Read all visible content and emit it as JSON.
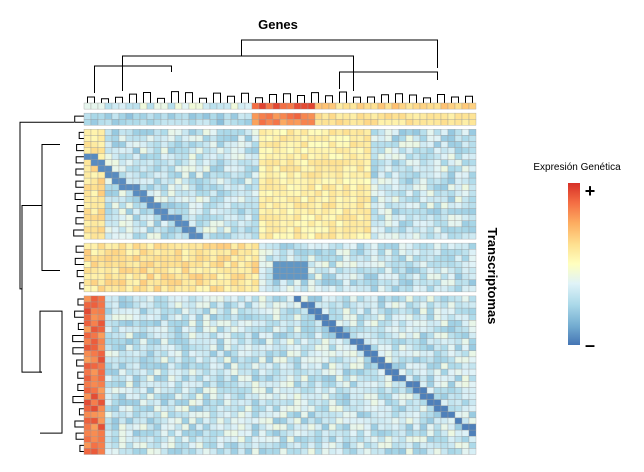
{
  "chart_data": {
    "type": "heatmap",
    "title": "",
    "xlabel": "Genes",
    "ylabel": "Transcriptomas",
    "n_columns": 56,
    "n_rows": 54,
    "row_groups": [
      2,
      18,
      8,
      26
    ],
    "legend": {
      "title": "Expresión Genética",
      "high_label": "+",
      "low_label": "–",
      "placement": "right",
      "colors": [
        "#d73027",
        "#f46d43",
        "#fdae61",
        "#fee090",
        "#ffffbf",
        "#e0f3f8",
        "#abd9e9",
        "#74add1",
        "#4575b4"
      ]
    },
    "value_range": [
      -1,
      1
    ],
    "dendrograms": {
      "columns": "top",
      "rows": "left"
    },
    "grid": true
  }
}
